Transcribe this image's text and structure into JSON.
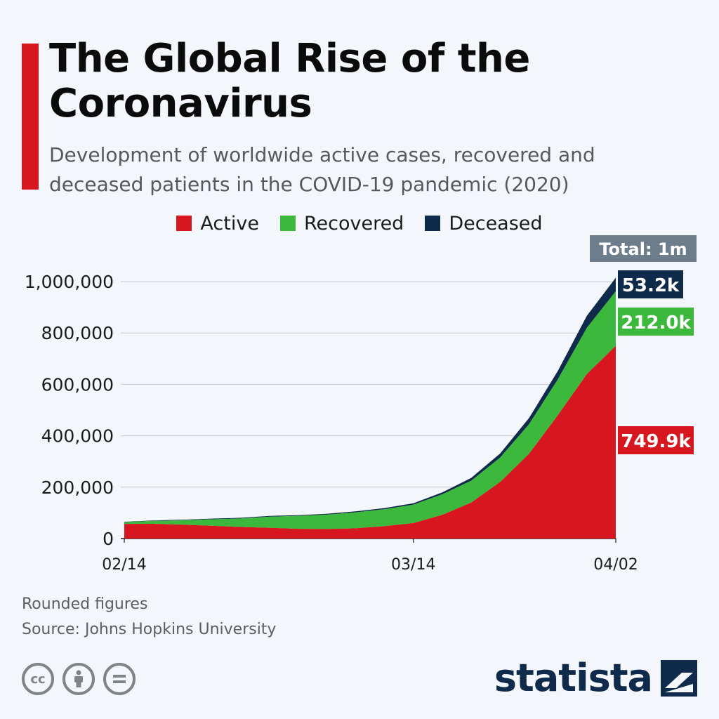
{
  "header": {
    "title": "The Global Rise of the Coronavirus",
    "subtitle": "Development of worldwide active cases, recovered and deceased patients in the COVID-19 pandemic (2020)"
  },
  "colors": {
    "accent": "#d7161f",
    "active": "#d7161f",
    "recovered": "#3cb93c",
    "deceased": "#0f2a4a",
    "total_badge": "#6d7d8b"
  },
  "chart_data": {
    "type": "area",
    "stacked": true,
    "x": [
      "02/14",
      "02/17",
      "02/20",
      "02/23",
      "02/26",
      "02/29",
      "03/03",
      "03/06",
      "03/09",
      "03/12",
      "03/14",
      "03/17",
      "03/20",
      "03/23",
      "03/26",
      "03/29",
      "04/01",
      "04/02"
    ],
    "series": [
      {
        "name": "Active",
        "values": [
          57000,
          57500,
          54000,
          50000,
          45000,
          42000,
          38000,
          37000,
          40000,
          48000,
          60000,
          92000,
          140000,
          220000,
          330000,
          480000,
          640000,
          749900
        ]
      },
      {
        "name": "Recovered",
        "values": [
          7000,
          11000,
          17000,
          25000,
          33000,
          43000,
          50000,
          56000,
          62000,
          66000,
          72000,
          80000,
          85000,
          95000,
          115000,
          140000,
          180000,
          212000
        ]
      },
      {
        "name": "Deceased",
        "values": [
          1400,
          1900,
          2200,
          2500,
          2700,
          2900,
          3100,
          3400,
          3800,
          4600,
          5500,
          7500,
          11000,
          16000,
          24000,
          33000,
          47000,
          53200
        ]
      }
    ],
    "xticks": [
      "02/14",
      "03/14",
      "04/02"
    ],
    "yticks": [
      "0",
      "200,000",
      "400,000",
      "600,000",
      "800,000",
      "1,000,000"
    ],
    "ylim": [
      0,
      1000000
    ],
    "end_labels": {
      "active": "749.9k",
      "recovered": "212.0k",
      "deceased": "53.2k"
    },
    "total_label": "Total: 1m",
    "grid": true,
    "legend_position": "top-center"
  },
  "legend": {
    "active": "Active",
    "recovered": "Recovered",
    "deceased": "Deceased"
  },
  "footer": {
    "note": "Rounded figures",
    "source": "Source: Johns Hopkins University",
    "brand": "statista",
    "cc_icons": [
      "cc-icon",
      "by-person-icon",
      "nd-equals-icon"
    ]
  }
}
